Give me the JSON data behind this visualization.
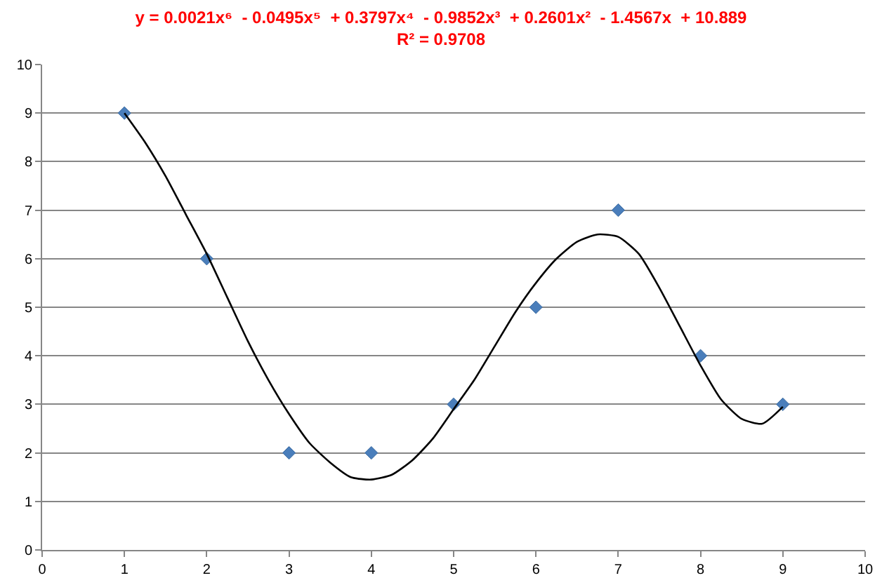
{
  "chart_data": {
    "type": "scatter",
    "title": "y = 0.0021x⁶  - 0.0495x⁵  + 0.3797x⁴  - 0.9852x³  + 0.2601x²  - 1.4567x  + 10.889",
    "subtitle": "R² = 0.9708",
    "x": [
      1,
      2,
      3,
      4,
      5,
      6,
      7,
      8,
      9
    ],
    "series": [
      {
        "color": "#4a7ebb",
        "marker": "diamond",
        "values": [
          9,
          6,
          2,
          2,
          3,
          5,
          7,
          4,
          3
        ]
      },
      {
        "type": "line",
        "color": "#000000",
        "x": [
          1,
          1.25,
          1.5,
          1.75,
          2,
          2.25,
          2.5,
          2.75,
          3,
          3.25,
          3.5,
          3.75,
          4,
          4.25,
          4.5,
          4.75,
          5,
          5.25,
          5.5,
          5.75,
          6,
          6.25,
          6.5,
          6.75,
          7,
          7.25,
          7.5,
          7.75,
          8,
          8.25,
          8.5,
          8.75,
          9
        ],
        "values": [
          9.0,
          8.4,
          7.7,
          6.9,
          6.1,
          5.2,
          4.3,
          3.5,
          2.8,
          2.2,
          1.8,
          1.5,
          1.45,
          1.55,
          1.85,
          2.3,
          2.9,
          3.5,
          4.2,
          4.9,
          5.5,
          6.0,
          6.35,
          6.5,
          6.45,
          6.1,
          5.4,
          4.6,
          3.8,
          3.1,
          2.7,
          2.6,
          2.95
        ]
      }
    ],
    "xlim": [
      0,
      10
    ],
    "xticks": [
      0,
      1,
      2,
      3,
      4,
      5,
      6,
      7,
      8,
      9,
      10
    ],
    "ylim": [
      0,
      10
    ],
    "yticks": [
      0,
      1,
      2,
      3,
      4,
      5,
      6,
      7,
      8,
      9,
      10
    ],
    "grid": "y",
    "line_style": "solid"
  }
}
